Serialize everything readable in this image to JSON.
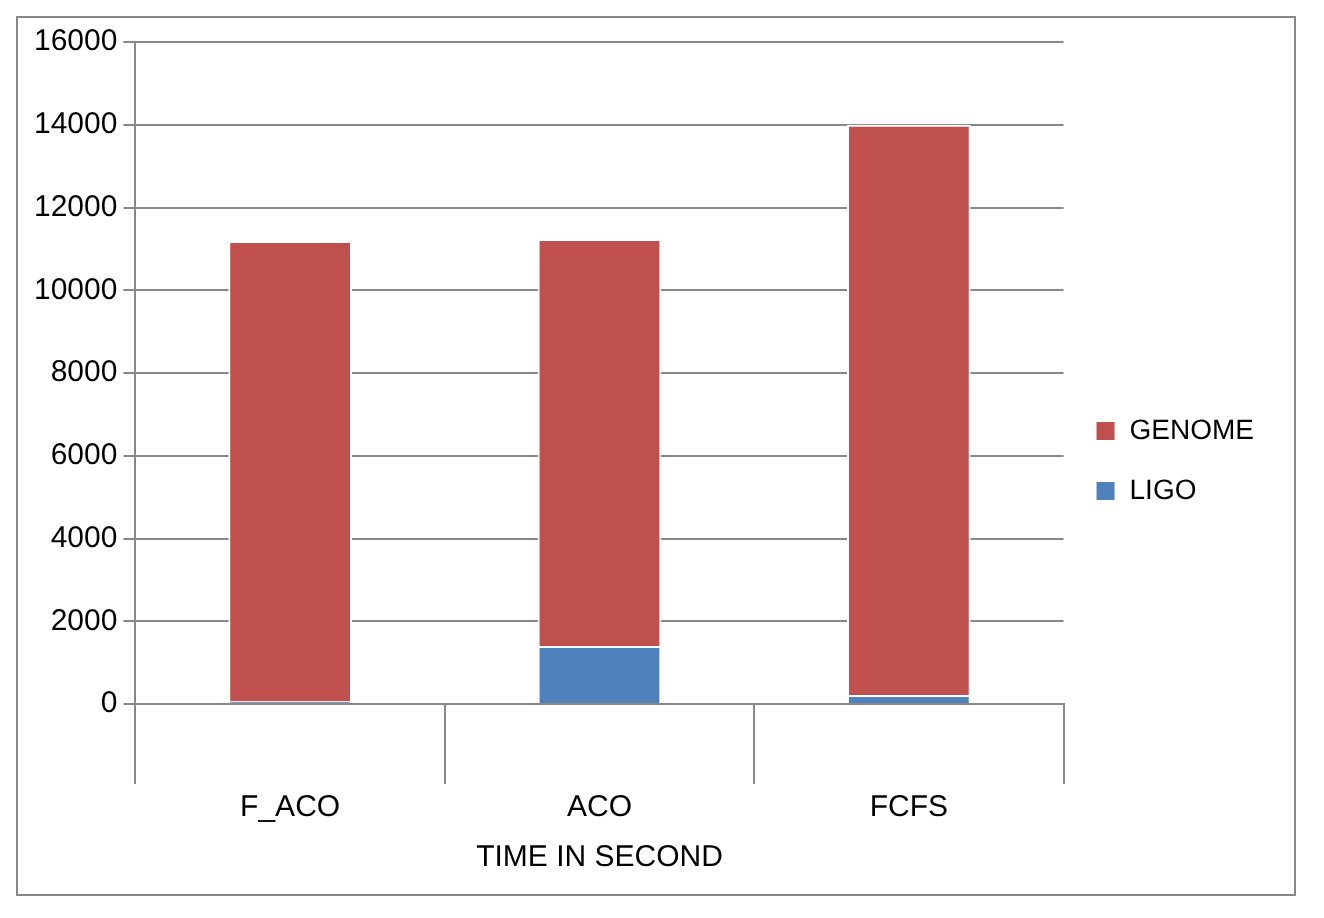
{
  "chart_data": {
    "type": "bar",
    "stacked": true,
    "categories": [
      "F_ACO",
      "ACO",
      "FCFS"
    ],
    "xlabel": "TIME IN SECOND",
    "series": [
      {
        "name": "LIGO",
        "color": "#4f81bd",
        "values": [
          60,
          1400,
          220
        ]
      },
      {
        "name": "GENOME",
        "color": "#c0504d",
        "values": [
          11130,
          9840,
          13780
        ]
      }
    ],
    "ylim": [
      0,
      16000
    ],
    "yticks": [
      0,
      2000,
      4000,
      6000,
      8000,
      10000,
      12000,
      14000,
      16000
    ],
    "grid": "y",
    "legend": "right"
  }
}
